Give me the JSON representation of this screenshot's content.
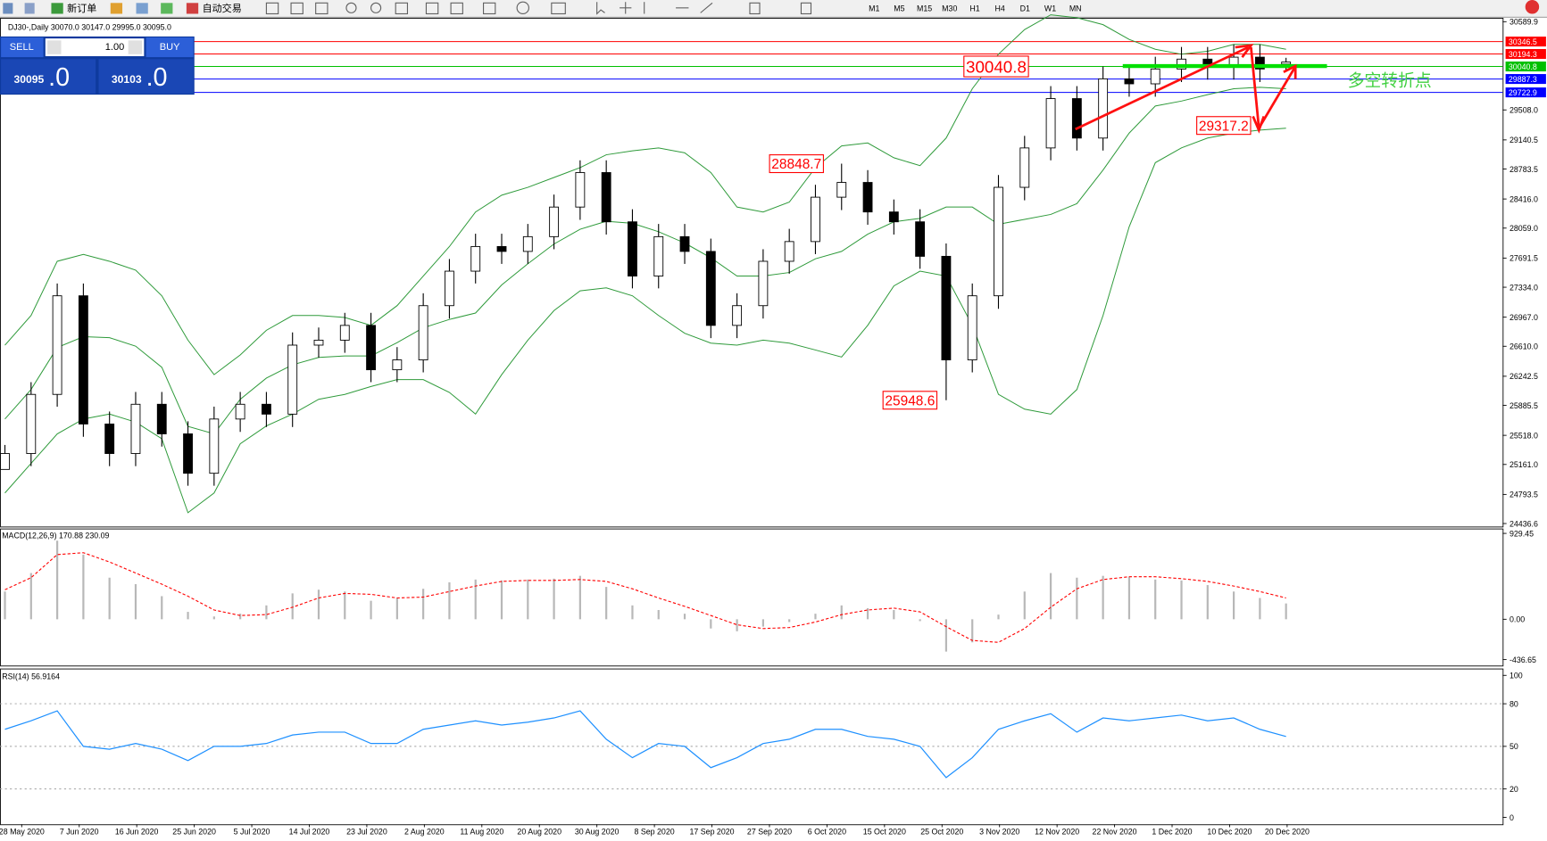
{
  "toolbar": {
    "new_order": "新订单",
    "auto_trading": "自动交易",
    "timeframes": [
      "M1",
      "M5",
      "M15",
      "M30",
      "H1",
      "H4",
      "D1",
      "W1",
      "MN"
    ]
  },
  "trade_panel": {
    "sell": "SELL",
    "lot": "1.00",
    "buy": "BUY",
    "bid_int": "30095",
    "bid_dec": ".0",
    "ask_int": "30103",
    "ask_dec": ".0"
  },
  "date_labels": [
    "28 May 2020",
    "7 Jun 2020",
    "16 Jun 2020",
    "25 Jun 2020",
    "5 Jul 2020",
    "14 Jul 2020",
    "23 Jul 2020",
    "2 Aug 2020",
    "11 Aug 2020",
    "20 Aug 2020",
    "30 Aug 2020",
    "8 Sep 2020",
    "17 Sep 2020",
    "27 Sep 2020",
    "6 Oct 2020",
    "15 Oct 2020",
    "25 Oct 2020",
    "3 Nov 2020",
    "12 Nov 2020",
    "22 Nov 2020",
    "1 Dec 2020",
    "10 Dec 2020",
    "20 Dec 2020"
  ],
  "chart_data": [
    {
      "type": "candlestick",
      "title": "DJ30-,Daily 30070.0 30147.0 29995.0 30095.0",
      "open": [
        25100,
        25295,
        26020,
        27229,
        25657,
        25295,
        25899,
        25536,
        25053,
        25718,
        25899,
        25778,
        26624,
        26685,
        26866,
        26322,
        26443,
        27108,
        27531,
        27833,
        27773,
        27954,
        28317,
        28740,
        28136,
        27471,
        27954,
        27773,
        26866,
        27108,
        27652,
        27894,
        28438,
        28619,
        28257,
        28136,
        27713,
        26443,
        27229,
        28559,
        29042,
        29647,
        29163,
        29889,
        29828,
        30010,
        30131,
        30034,
        30155,
        30070
      ],
      "high": [
        25400,
        26170,
        27380,
        27380,
        25810,
        26050,
        26050,
        25690,
        25870,
        26050,
        26050,
        26780,
        26840,
        27020,
        27020,
        26600,
        27260,
        27680,
        27990,
        27990,
        28110,
        28470,
        28890,
        28890,
        28290,
        28110,
        28110,
        27930,
        27260,
        27800,
        28050,
        28590,
        28849,
        28770,
        28410,
        28290,
        27870,
        27380,
        28710,
        29190,
        29800,
        29800,
        30040,
        30040,
        30160,
        30280,
        30280,
        30310,
        30310,
        30147
      ],
      "low": [
        25150,
        25140,
        25870,
        25500,
        25140,
        25140,
        25380,
        24900,
        24900,
        25560,
        25620,
        25620,
        26470,
        26530,
        26170,
        26170,
        26290,
        26950,
        27380,
        27620,
        27620,
        27800,
        28160,
        27980,
        27320,
        27320,
        27620,
        26710,
        26710,
        26950,
        27500,
        27740,
        28280,
        28100,
        27980,
        27560,
        25949,
        26290,
        27070,
        28400,
        28890,
        29010,
        29010,
        29670,
        29670,
        29850,
        29880,
        29880,
        29850,
        29995
      ],
      "close": [
        25295,
        26020,
        27229,
        25657,
        25295,
        25899,
        25536,
        25053,
        25718,
        25899,
        25778,
        26624,
        26685,
        26866,
        26322,
        26443,
        27108,
        27531,
        27833,
        27773,
        27954,
        28317,
        28740,
        28136,
        27471,
        27954,
        27773,
        26866,
        27108,
        27652,
        27894,
        28438,
        28619,
        28257,
        28136,
        27713,
        26443,
        27229,
        28559,
        29042,
        29647,
        29163,
        29889,
        29828,
        30010,
        30131,
        30034,
        30155,
        30010,
        30095
      ],
      "upper": [
        26624,
        26987,
        27652,
        27737,
        27652,
        27543,
        27229,
        26685,
        26262,
        26504,
        26806,
        26987,
        26987,
        26963,
        26866,
        27108,
        27471,
        27833,
        28257,
        28462,
        28559,
        28680,
        28801,
        28958,
        29006,
        29042,
        28982,
        28740,
        28317,
        28257,
        28378,
        28801,
        29067,
        29103,
        28922,
        28825,
        29163,
        29768,
        30191,
        30493,
        30675,
        30638,
        30554,
        30372,
        30251,
        30191,
        30227,
        30312,
        30312,
        30251
      ],
      "middle": [
        25718,
        26081,
        26594,
        26728,
        26715,
        26612,
        26353,
        25627,
        25537,
        25960,
        26220,
        26383,
        26474,
        26492,
        26492,
        26655,
        26836,
        26939,
        27018,
        27362,
        27622,
        27864,
        28045,
        28142,
        28118,
        28015,
        27876,
        27695,
        27471,
        27471,
        27514,
        27683,
        27773,
        27985,
        28136,
        28178,
        28317,
        28317,
        28106,
        28166,
        28227,
        28359,
        28771,
        29224,
        29556,
        29617,
        29695,
        29768,
        29786,
        29768
      ],
      "lower": [
        24811,
        25174,
        25536,
        25718,
        25778,
        25681,
        25476,
        24569,
        24811,
        25415,
        25633,
        25778,
        25960,
        26020,
        26117,
        26201,
        26201,
        26044,
        25778,
        26262,
        26685,
        27048,
        27289,
        27326,
        27229,
        26987,
        26770,
        26649,
        26624,
        26685,
        26649,
        26564,
        26479,
        26866,
        27350,
        27531,
        27471,
        26866,
        26020,
        25839,
        25778,
        26080,
        26987,
        28075,
        28861,
        29042,
        29163,
        29224,
        29260,
        29284
      ],
      "band_color": "#2e9a3a",
      "ylim": [
        24436.6,
        30589.9
      ],
      "yticks": [
        30589.9,
        {
          "value": 29508,
          "label": "29508.0"
        },
        29140.5,
        28783.5,
        {
          "value": 28416,
          "label": "28416.0"
        },
        {
          "value": 28059,
          "label": "28059.0"
        },
        27691.5,
        {
          "value": 27334,
          "label": "27334.0"
        },
        {
          "value": 26967,
          "label": "26967.0"
        },
        {
          "value": 26610,
          "label": "26610.0"
        },
        26242.5,
        25885.5,
        {
          "value": 25518,
          "label": "25518.0"
        },
        {
          "value": 25161,
          "label": "25161.0"
        },
        24793.5,
        24436.6
      ],
      "levels": [
        {
          "value": 30346.5,
          "color": "#ff0000"
        },
        {
          "value": 30194.3,
          "color": "#ff0000"
        },
        {
          "value": 30040.8,
          "color": "#00c000"
        },
        {
          "value": 29887.3,
          "color": "#0000ff"
        },
        {
          "value": 29722.9,
          "color": "#0000ff"
        }
      ],
      "price_labels": [
        30040.8,
        28848.7,
        25948.6,
        29317.2
      ],
      "note": "多空转折点"
    },
    {
      "type": "macd",
      "title": "MACD(12,26,9) 170.88 230.09",
      "histogram": [
        300,
        500,
        850,
        700,
        450,
        380,
        250,
        80,
        30,
        60,
        150,
        280,
        320,
        300,
        200,
        230,
        330,
        400,
        430,
        420,
        430,
        440,
        470,
        350,
        150,
        100,
        60,
        -100,
        -130,
        -80,
        -30,
        60,
        150,
        120,
        100,
        -20,
        -350,
        -250,
        50,
        300,
        500,
        450,
        470,
        460,
        430,
        420,
        370,
        300,
        230,
        170.88
      ],
      "signal": [
        320,
        450,
        700,
        720,
        620,
        500,
        380,
        250,
        100,
        40,
        50,
        130,
        230,
        280,
        270,
        230,
        240,
        300,
        360,
        410,
        420,
        420,
        430,
        410,
        330,
        230,
        140,
        40,
        -60,
        -100,
        -90,
        -30,
        50,
        100,
        120,
        80,
        -80,
        -230,
        -250,
        -100,
        130,
        330,
        430,
        460,
        460,
        440,
        410,
        360,
        300,
        230.09
      ],
      "histogram_color": "#b8b8b8",
      "signal_color": "#ff0000",
      "ylim": [
        -436.65,
        929.45
      ],
      "yticks": [
        929.45,
        {
          "value": 0,
          "label": "0.00"
        },
        -436.65
      ]
    },
    {
      "type": "rsi",
      "title": "RSI(14) 56.9164",
      "values": [
        62,
        68,
        75,
        50,
        48,
        52,
        48,
        40,
        50,
        50,
        52,
        58,
        60,
        60,
        52,
        52,
        62,
        65,
        68,
        65,
        67,
        70,
        75,
        55,
        42,
        52,
        50,
        35,
        42,
        52,
        55,
        62,
        62,
        57,
        55,
        50,
        28,
        42,
        62,
        68,
        73,
        60,
        70,
        68,
        70,
        72,
        68,
        70,
        62,
        56.9164
      ],
      "color": "#1e90ff",
      "ylim": [
        0,
        100
      ],
      "yticks": [
        100,
        80,
        50,
        20,
        0
      ]
    }
  ]
}
